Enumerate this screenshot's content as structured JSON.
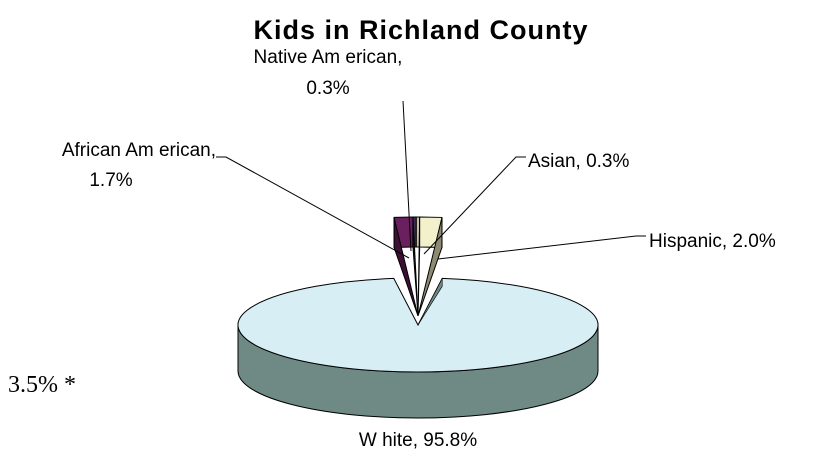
{
  "chart_data": {
    "type": "pie",
    "style": "3d-exploded",
    "title": "Kids in Richland County",
    "unit": "%",
    "slices": [
      {
        "name": "White",
        "value": 95.8,
        "label": "W hite, 95.8%",
        "color": "#d6eef4",
        "side_color": "#6f8a84"
      },
      {
        "name": "Hispanic",
        "value": 2.0,
        "label": "Hispanic, 2.0%",
        "color": "#f3f0cc",
        "side_color": "#8c8a72"
      },
      {
        "name": "Asian",
        "value": 0.3,
        "label": "Asian, 0.3%",
        "color": "#c9bfa6",
        "side_color": "#6e6654"
      },
      {
        "name": "Native American",
        "value": 0.3,
        "label_lines": [
          "Native Am erican,",
          "0.3%"
        ],
        "color": "#3a2f55",
        "side_color": "#221a33"
      },
      {
        "name": "African American",
        "value": 1.7,
        "label_lines": [
          "African Am erican,",
          "1.7%"
        ],
        "color": "#6a1f5e",
        "side_color": "#3c0f35"
      }
    ]
  },
  "footnote": "3.5% *"
}
